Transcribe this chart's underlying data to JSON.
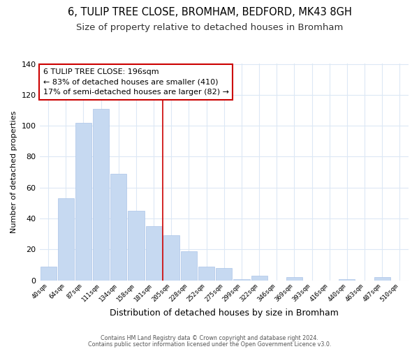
{
  "title1": "6, TULIP TREE CLOSE, BROMHAM, BEDFORD, MK43 8GH",
  "title2": "Size of property relative to detached houses in Bromham",
  "xlabel": "Distribution of detached houses by size in Bromham",
  "ylabel": "Number of detached properties",
  "categories": [
    "40sqm",
    "64sqm",
    "87sqm",
    "111sqm",
    "134sqm",
    "158sqm",
    "181sqm",
    "205sqm",
    "228sqm",
    "252sqm",
    "275sqm",
    "299sqm",
    "322sqm",
    "346sqm",
    "369sqm",
    "393sqm",
    "416sqm",
    "440sqm",
    "463sqm",
    "487sqm",
    "510sqm"
  ],
  "values": [
    9,
    53,
    102,
    111,
    69,
    45,
    35,
    29,
    19,
    9,
    8,
    1,
    3,
    0,
    2,
    0,
    0,
    1,
    0,
    2,
    0
  ],
  "bar_color": "#c6d9f1",
  "bar_edge_color": "#aac4e8",
  "vline_x_index": 7,
  "vline_color": "#cc0000",
  "annotation_title": "6 TULIP TREE CLOSE: 196sqm",
  "annotation_line1": "← 83% of detached houses are smaller (410)",
  "annotation_line2": "17% of semi-detached houses are larger (82) →",
  "annotation_box_color": "#ffffff",
  "annotation_box_edge": "#cc0000",
  "ylim": [
    0,
    140
  ],
  "yticks": [
    0,
    20,
    40,
    60,
    80,
    100,
    120,
    140
  ],
  "footer1": "Contains HM Land Registry data © Crown copyright and database right 2024.",
  "footer2": "Contains public sector information licensed under the Open Government Licence v3.0.",
  "bg_color": "#ffffff",
  "grid_color": "#dce8f5",
  "title1_fontsize": 10.5,
  "title2_fontsize": 9.5
}
